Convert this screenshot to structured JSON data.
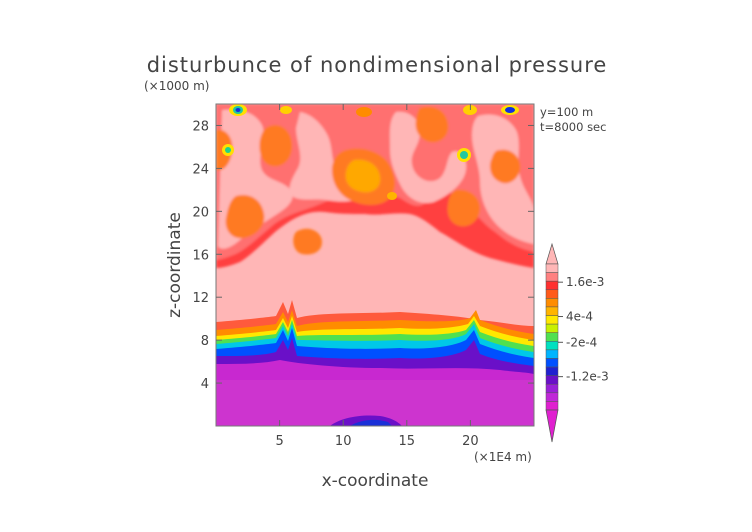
{
  "chart_data": {
    "type": "heatmap",
    "title": "disturbunce of nondimensional pressure",
    "xlabel": "x-coordinate",
    "ylabel": "z-coordinate",
    "x_unit": "(×1E4 m)",
    "y_unit": "(×1000 m)",
    "annotations": [
      "y=100 m",
      "t=8000 sec"
    ],
    "xlim": [
      0,
      25
    ],
    "ylim": [
      0,
      30
    ],
    "x_ticks": [
      5,
      10,
      15,
      20
    ],
    "y_ticks": [
      4,
      8,
      12,
      16,
      20,
      24,
      28
    ],
    "colorbar": {
      "labels": [
        "1.6e-3",
        "4e-4",
        "-2e-4",
        "-1.2e-3"
      ],
      "colors": [
        "#ffb6b6",
        "#ff8080",
        "#ff3030",
        "#ff5a1a",
        "#ff8c00",
        "#ffb400",
        "#ffe800",
        "#c8f000",
        "#50e050",
        "#00e0c0",
        "#00b4ff",
        "#0050ff",
        "#2020d0",
        "#6a10c8",
        "#9a20d8",
        "#c028d8",
        "#e020d0"
      ]
    },
    "regions": [
      {
        "z_range": [
          0,
          6.5
        ],
        "level": "-1.2e-3 and below",
        "color": "#c83cd2"
      },
      {
        "z_range": [
          6.5,
          8.8
        ],
        "level": "transition -1.2e-3 to 1.6e-3"
      },
      {
        "z_range": [
          8.8,
          16
        ],
        "level": "above 1.6e-3",
        "color": "#ffb6b6"
      },
      {
        "z_range": [
          16,
          30
        ],
        "level": "patchy 4e-4 to 1.6e-3"
      }
    ]
  }
}
